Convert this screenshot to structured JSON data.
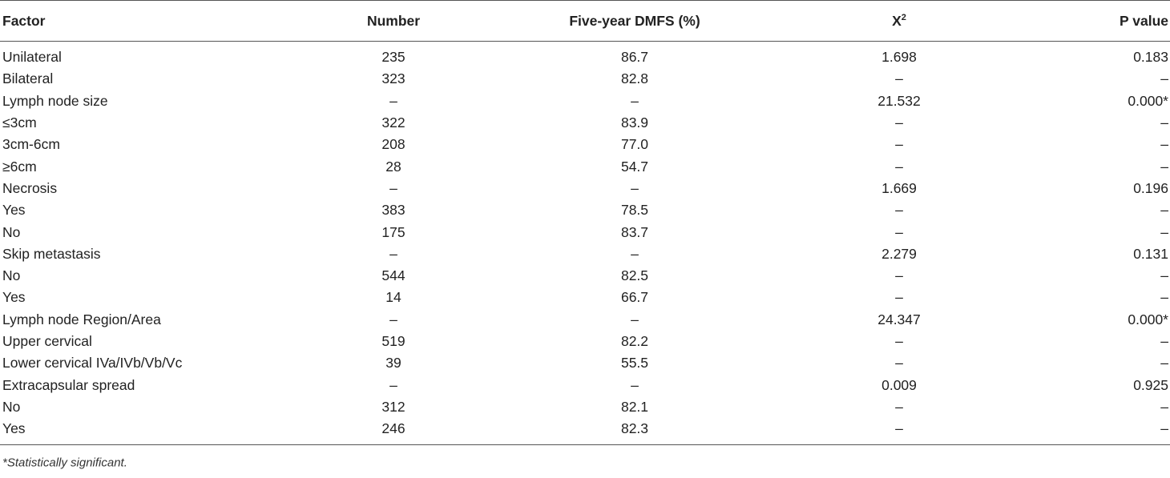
{
  "table": {
    "headers": {
      "factor": "Factor",
      "number": "Number",
      "dmfs": "Five-year DMFS (%)",
      "chi_base": "X",
      "chi_sup": "2",
      "p_value": "P value"
    },
    "rows": [
      {
        "factor": "Unilateral",
        "number": "235",
        "dmfs": "86.7",
        "chi": "1.698",
        "p": "0.183"
      },
      {
        "factor": "Bilateral",
        "number": "323",
        "dmfs": "82.8",
        "chi": "–",
        "p": "–"
      },
      {
        "factor": "Lymph node size",
        "number": "–",
        "dmfs": "–",
        "chi": "21.532",
        "p": "0.000*"
      },
      {
        "factor": "≤3cm",
        "number": "322",
        "dmfs": "83.9",
        "chi": "–",
        "p": "–"
      },
      {
        "factor": "3cm-6cm",
        "number": "208",
        "dmfs": "77.0",
        "chi": "–",
        "p": "–"
      },
      {
        "factor": "≥6cm",
        "number": "28",
        "dmfs": "54.7",
        "chi": "–",
        "p": "–"
      },
      {
        "factor": "Necrosis",
        "number": "–",
        "dmfs": "–",
        "chi": "1.669",
        "p": "0.196"
      },
      {
        "factor": "Yes",
        "number": "383",
        "dmfs": "78.5",
        "chi": "–",
        "p": "–"
      },
      {
        "factor": "No",
        "number": "175",
        "dmfs": "83.7",
        "chi": "–",
        "p": "–"
      },
      {
        "factor": "Skip metastasis",
        "number": "–",
        "dmfs": "–",
        "chi": "2.279",
        "p": "0.131"
      },
      {
        "factor": "No",
        "number": "544",
        "dmfs": "82.5",
        "chi": "–",
        "p": "–"
      },
      {
        "factor": "Yes",
        "number": "14",
        "dmfs": "66.7",
        "chi": "–",
        "p": "–"
      },
      {
        "factor": "Lymph node Region/Area",
        "number": "–",
        "dmfs": "–",
        "chi": "24.347",
        "p": "0.000*"
      },
      {
        "factor": "Upper cervical",
        "number": "519",
        "dmfs": "82.2",
        "chi": "–",
        "p": "–"
      },
      {
        "factor": "Lower cervical IVa/IVb/Vb/Vc",
        "number": "39",
        "dmfs": "55.5",
        "chi": "–",
        "p": "–"
      },
      {
        "factor": "Extracapsular spread",
        "number": "–",
        "dmfs": "–",
        "chi": "0.009",
        "p": "0.925"
      },
      {
        "factor": "No",
        "number": "312",
        "dmfs": "82.1",
        "chi": "–",
        "p": "–"
      },
      {
        "factor": "Yes",
        "number": "246",
        "dmfs": "82.3",
        "chi": "–",
        "p": "–"
      }
    ]
  },
  "footnote": "*Statistically significant."
}
